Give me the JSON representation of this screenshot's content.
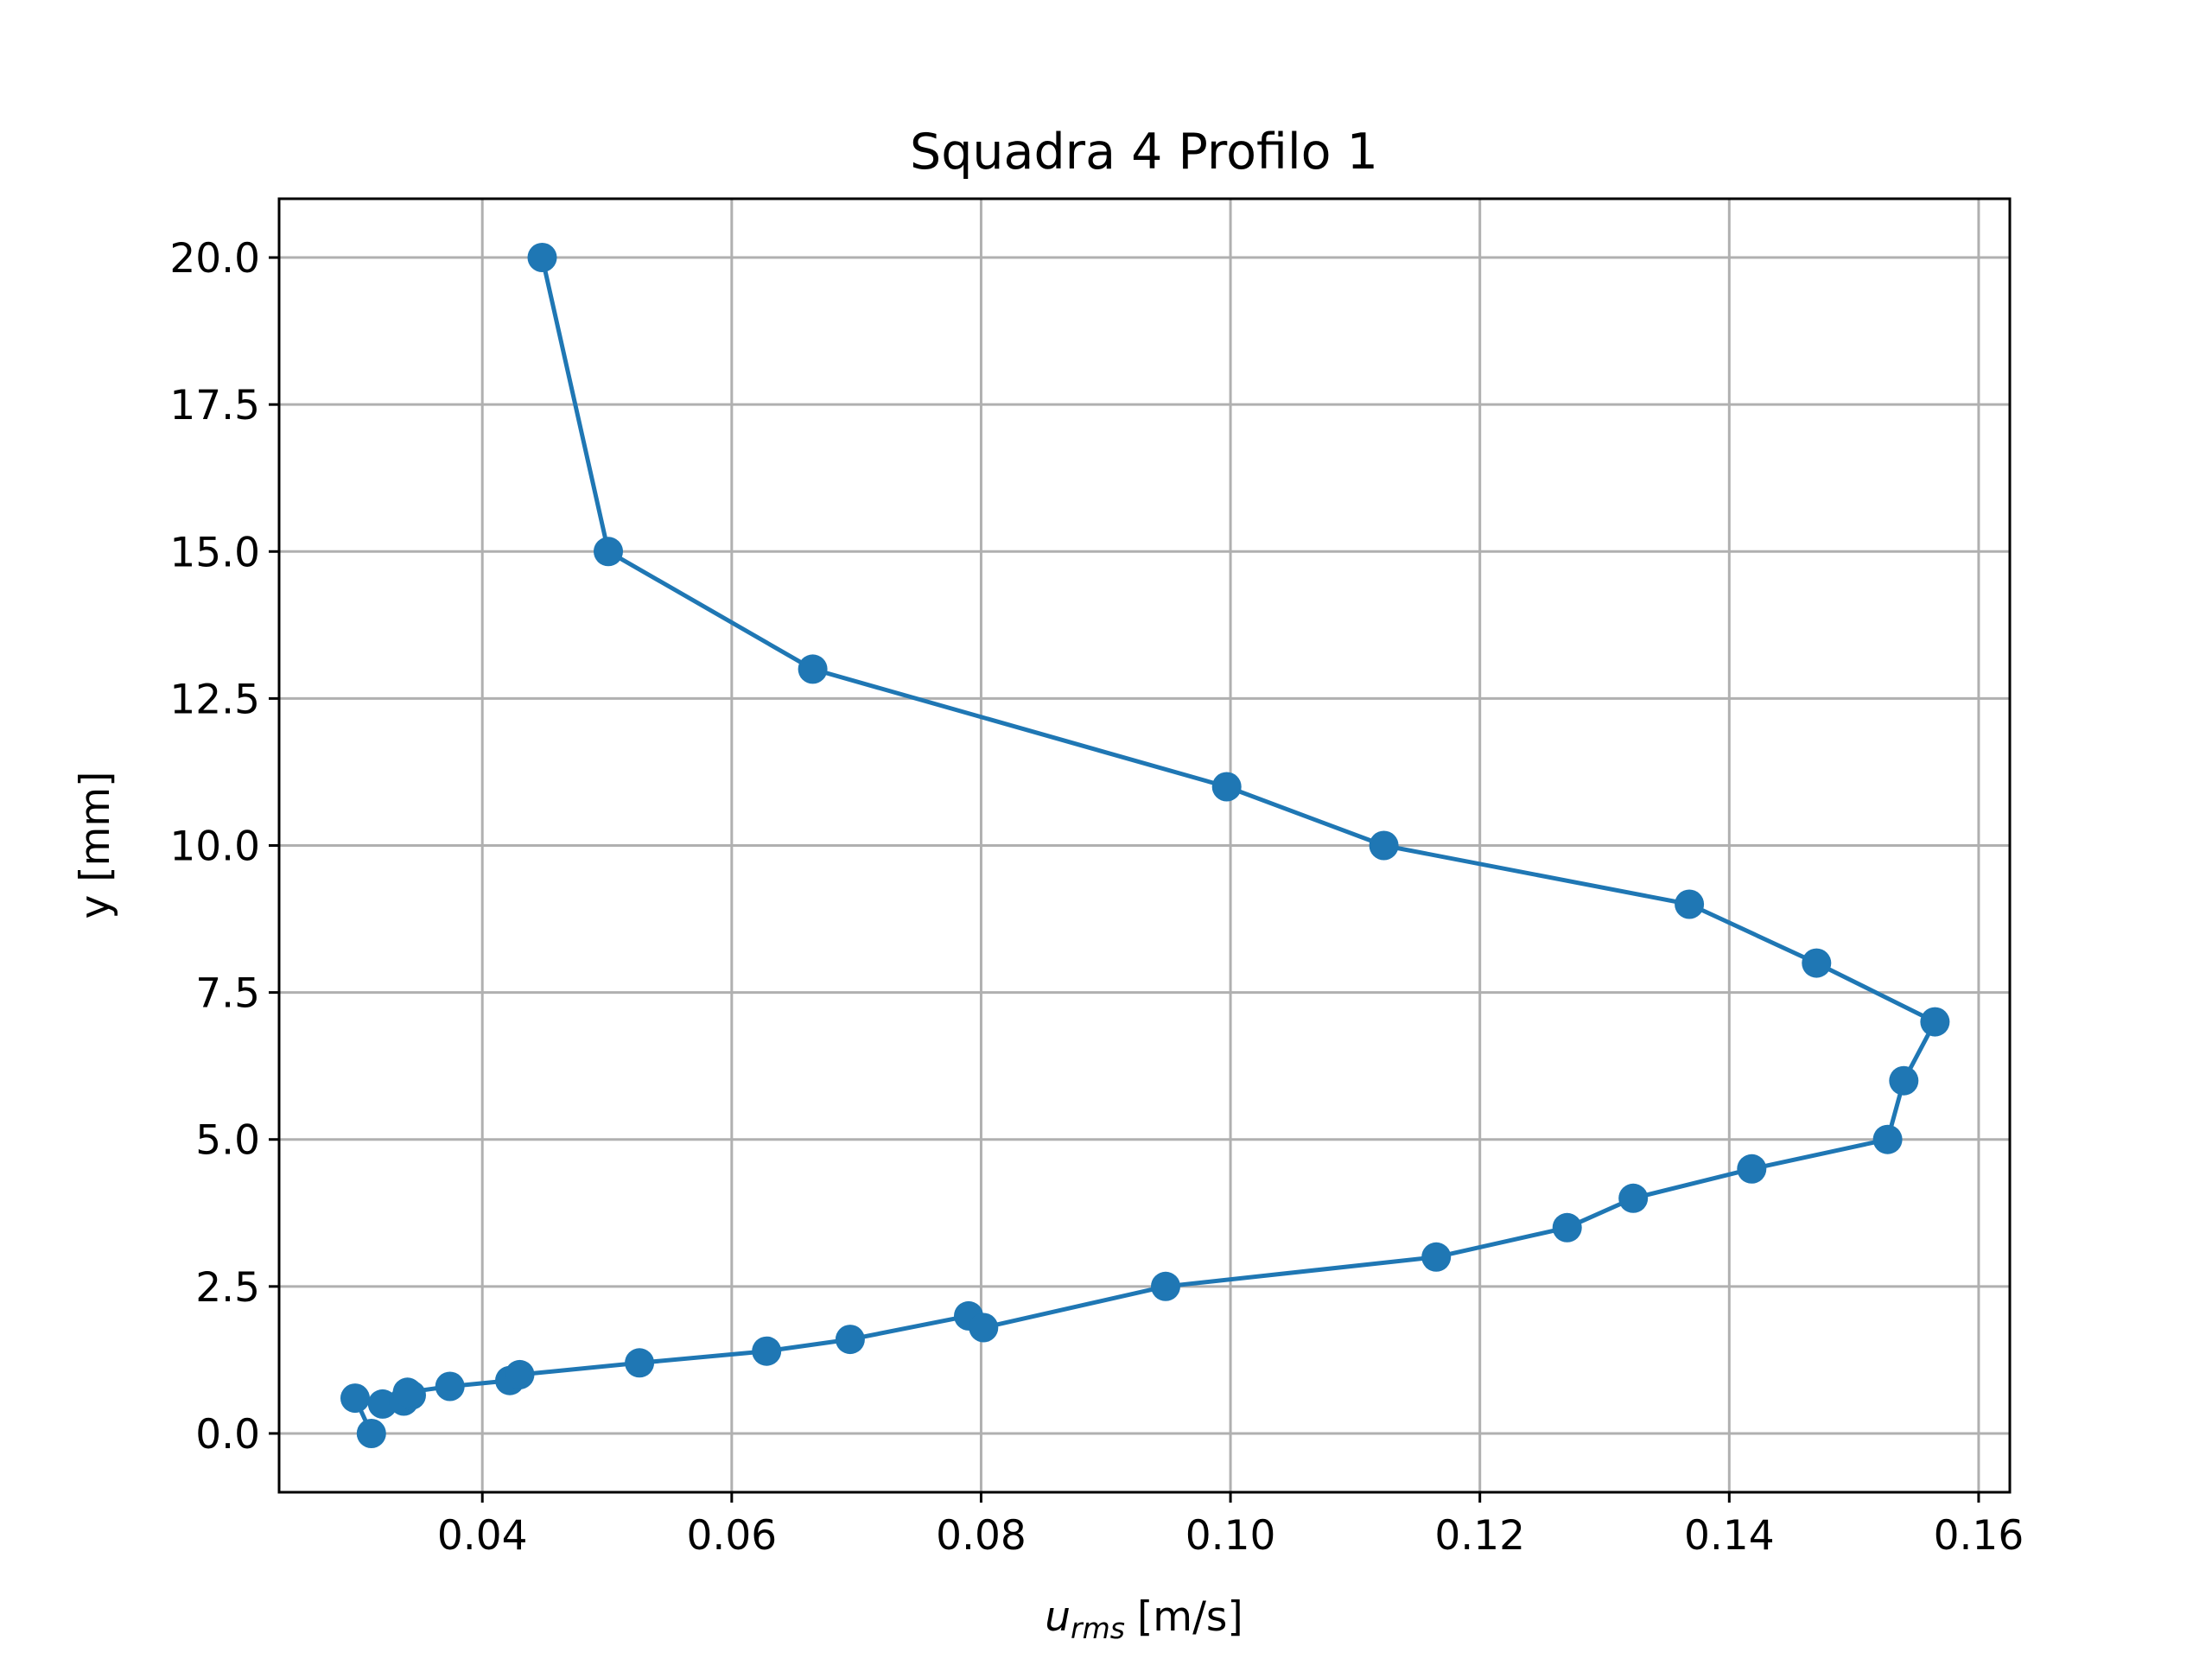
{
  "chart_data": {
    "type": "line",
    "title": "Squadra 4 Profilo 1",
    "xlabel": {
      "symbol": "u",
      "subscript": "rms",
      "unit": "[m/s]"
    },
    "ylabel": "y [mm]",
    "xlim": [
      0.0237,
      0.1625
    ],
    "ylim": [
      -1.0,
      21.0
    ],
    "x_ticks": [
      0.04,
      0.06,
      0.08,
      0.1,
      0.12,
      0.14,
      0.16
    ],
    "x_tick_labels": [
      "0.04",
      "0.06",
      "0.08",
      "0.10",
      "0.12",
      "0.14",
      "0.16"
    ],
    "y_ticks": [
      0.0,
      2.5,
      5.0,
      7.5,
      10.0,
      12.5,
      15.0,
      17.5,
      20.0
    ],
    "y_tick_labels": [
      "0.0",
      "2.5",
      "5.0",
      "7.5",
      "10.0",
      "12.5",
      "15.0",
      "17.5",
      "20.0"
    ],
    "grid": true,
    "marker": "circle",
    "color": "#1f77b4",
    "series": [
      {
        "x": [
          0.0311,
          0.0298,
          0.032,
          0.0337,
          0.0343,
          0.034,
          0.0374,
          0.0422,
          0.043,
          0.0526,
          0.0628,
          0.0695,
          0.079,
          0.0802,
          0.0948,
          0.1165,
          0.127,
          0.1323,
          0.1418,
          0.1527,
          0.154,
          0.1565,
          0.147,
          0.1368,
          0.1123,
          0.0997,
          0.0665,
          0.0501,
          0.0448
        ],
        "y": [
          0.0,
          0.6,
          0.5,
          0.55,
          0.65,
          0.7,
          0.8,
          0.9,
          1.0,
          1.2,
          1.4,
          1.6,
          2.0,
          1.8,
          2.5,
          3.0,
          3.5,
          4.0,
          4.5,
          5.0,
          6.0,
          7.0,
          8.0,
          9.0,
          10.0,
          11.0,
          13.0,
          15.0,
          20.0
        ]
      }
    ]
  }
}
